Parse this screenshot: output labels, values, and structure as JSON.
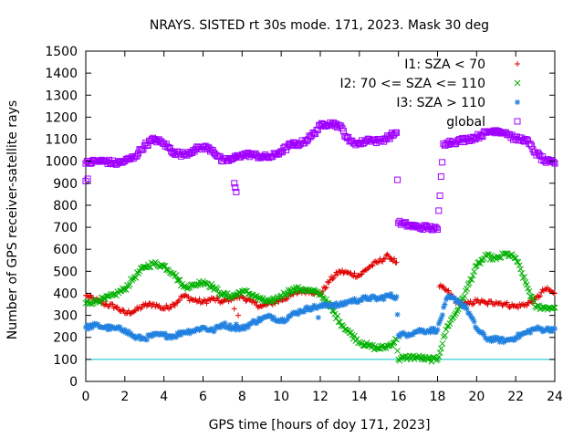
{
  "chart_data": {
    "type": "scatter",
    "title": "NRAYS. SISTED rt 30s mode. 171, 2023. Mask 30 deg",
    "xlabel": "GPS time [hours of doy 171, 2023]",
    "ylabel": "Number of GPS receiver-satellite rays",
    "xlim": [
      0,
      24
    ],
    "ylim": [
      0,
      1500
    ],
    "xticks": [
      0,
      2,
      4,
      6,
      8,
      10,
      12,
      14,
      16,
      18,
      20,
      22,
      24
    ],
    "yticks": [
      0,
      100,
      200,
      300,
      400,
      500,
      600,
      700,
      800,
      900,
      1000,
      1100,
      1200,
      1300,
      1400,
      1500
    ],
    "reference_line": {
      "y": 100,
      "color": "#00c0c0"
    },
    "legend_position": "top-right",
    "series": [
      {
        "name": "I1: SZA < 70",
        "marker": "plus",
        "color": "#e00000",
        "x": [
          0,
          0.5,
          1,
          1.5,
          2,
          2.5,
          3,
          3.5,
          4,
          4.5,
          5,
          5.5,
          6,
          6.5,
          7,
          7.5,
          8,
          8.5,
          9,
          9.5,
          10,
          10.5,
          11,
          11.5,
          12,
          12.5,
          13,
          13.5,
          14,
          14.5,
          15,
          15.5,
          15.9,
          18.1,
          18.5,
          19,
          19.5,
          20,
          20.5,
          21,
          21.5,
          22,
          22.5,
          23,
          23.5,
          24
        ],
        "y": [
          390,
          370,
          350,
          340,
          310,
          320,
          345,
          350,
          330,
          350,
          390,
          370,
          360,
          375,
          360,
          380,
          385,
          360,
          340,
          355,
          370,
          390,
          410,
          410,
          395,
          460,
          500,
          490,
          480,
          520,
          545,
          570,
          540,
          430,
          410,
          360,
          350,
          365,
          355,
          360,
          350,
          340,
          350,
          370,
          420,
          400
        ]
      },
      {
        "name": "I2: 70 <= SZA <= 110",
        "marker": "cross",
        "color": "#00b000",
        "x": [
          0,
          0.5,
          1,
          1.5,
          2,
          2.5,
          3,
          3.5,
          4,
          4.5,
          5,
          5.5,
          6,
          6.5,
          7,
          7.5,
          8,
          8.5,
          9,
          9.5,
          10,
          10.5,
          11,
          11.5,
          12,
          12.5,
          13,
          13.5,
          14,
          14.5,
          15,
          15.5,
          15.9,
          16,
          16.5,
          17,
          17.5,
          18,
          18.5,
          19,
          19.5,
          20,
          20.5,
          21,
          21.5,
          22,
          22.5,
          23,
          23.5,
          24
        ],
        "y": [
          355,
          365,
          375,
          395,
          420,
          475,
          520,
          535,
          525,
          490,
          430,
          435,
          455,
          430,
          395,
          385,
          410,
          395,
          370,
          360,
          390,
          415,
          420,
          410,
          400,
          340,
          270,
          220,
          180,
          160,
          150,
          160,
          190,
          100,
          110,
          110,
          100,
          100,
          250,
          320,
          420,
          525,
          570,
          555,
          580,
          560,
          450,
          340,
          335,
          335
        ]
      },
      {
        "name": "I3: SZA > 110",
        "marker": "star",
        "color": "#2080e0",
        "x": [
          0,
          0.5,
          1,
          1.5,
          2,
          2.5,
          3,
          3.5,
          4,
          4.5,
          5,
          5.5,
          6,
          6.5,
          7,
          7.5,
          8,
          8.5,
          9,
          9.5,
          10,
          10.5,
          11,
          11.5,
          12,
          12.5,
          13,
          13.5,
          14,
          14.5,
          15,
          15.5,
          15.9,
          16,
          16.5,
          17,
          17.5,
          18,
          18.5,
          19,
          19.5,
          20,
          20.5,
          21,
          21.5,
          22,
          22.5,
          23,
          23.5,
          24
        ],
        "y": [
          245,
          255,
          245,
          240,
          235,
          200,
          195,
          210,
          210,
          205,
          225,
          230,
          245,
          230,
          260,
          245,
          240,
          265,
          285,
          295,
          275,
          300,
          320,
          335,
          340,
          350,
          345,
          365,
          370,
          380,
          375,
          390,
          385,
          210,
          215,
          230,
          230,
          235,
          380,
          370,
          330,
          240,
          195,
          190,
          185,
          200,
          220,
          240,
          235,
          240
        ]
      },
      {
        "name": "global",
        "marker": "square",
        "color": "#a000ff",
        "x": [
          0,
          0.5,
          1,
          1.5,
          2,
          2.5,
          3,
          3.5,
          4,
          4.5,
          5,
          5.5,
          6,
          6.5,
          7,
          7.5,
          8,
          8.5,
          9,
          9.5,
          10,
          10.5,
          11,
          11.5,
          12,
          12.5,
          13,
          13.5,
          14,
          14.5,
          15,
          15.5,
          15.9,
          16,
          16.5,
          17,
          17.5,
          18,
          18.3,
          18.5,
          19,
          19.5,
          20,
          20.5,
          21,
          21.5,
          22,
          22.5,
          23,
          23.5,
          24
        ],
        "y": [
          990,
          1000,
          1000,
          990,
          1000,
          1020,
          1070,
          1100,
          1080,
          1040,
          1030,
          1050,
          1065,
          1050,
          1000,
          1010,
          1030,
          1030,
          1020,
          1020,
          1045,
          1075,
          1080,
          1110,
          1160,
          1175,
          1160,
          1090,
          1080,
          1100,
          1090,
          1110,
          1130,
          720,
          710,
          700,
          700,
          690,
          1080,
          1085,
          1090,
          1100,
          1110,
          1130,
          1140,
          1130,
          1100,
          1100,
          1040,
          1000,
          990
        ]
      }
    ],
    "outliers": [
      {
        "series": "global",
        "x": [
          0,
          0.1,
          7.6,
          7.65,
          7.7
        ],
        "y": [
          910,
          920,
          900,
          880,
          860
        ]
      },
      {
        "series": "I1: SZA < 70",
        "x": [
          7.6,
          7.8
        ],
        "y": [
          330,
          300
        ]
      },
      {
        "series": "I3: SZA > 110",
        "x": [
          7.7,
          11.9
        ],
        "y": [
          260,
          290
        ]
      }
    ]
  }
}
